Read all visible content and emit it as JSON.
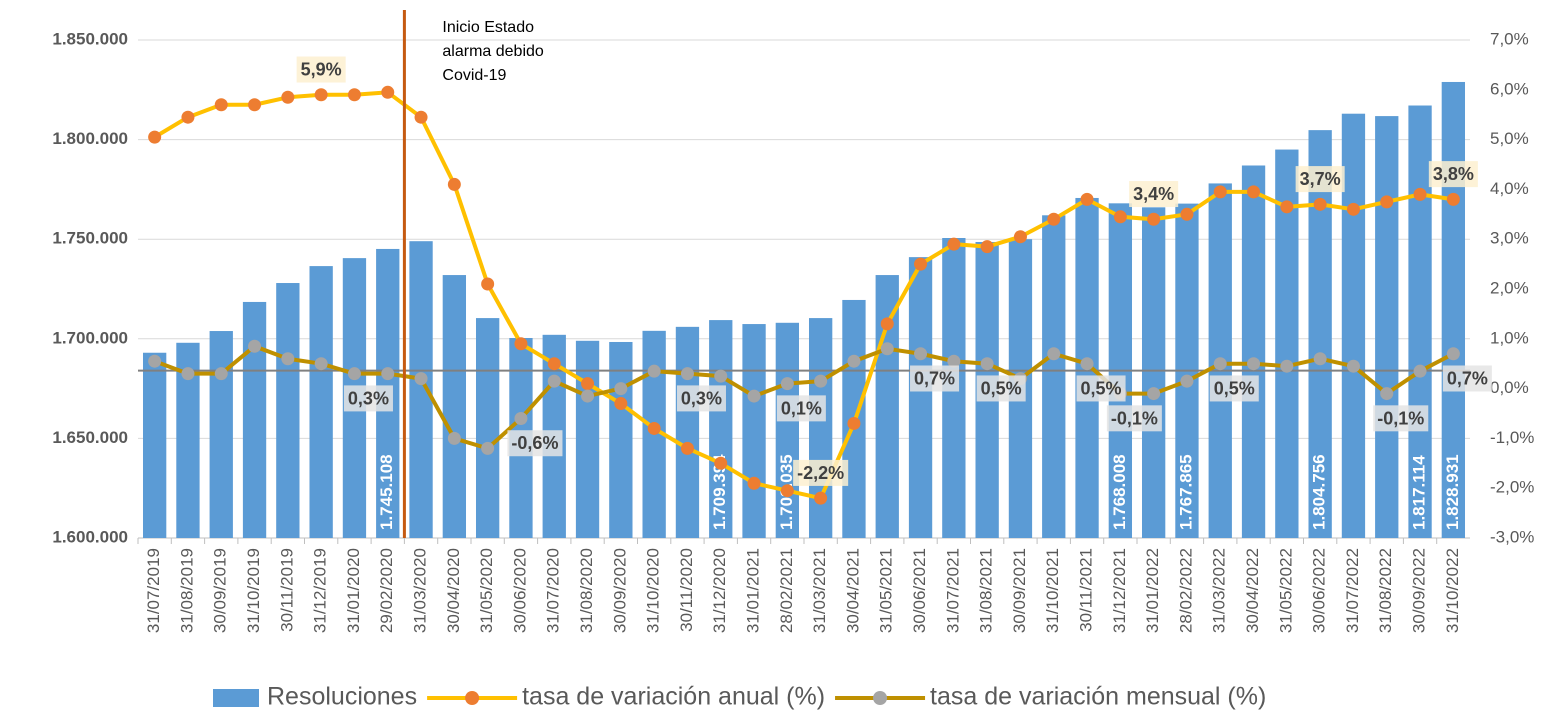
{
  "chart_data": {
    "type": "bar_line",
    "annotation": [
      "Inicio Estado",
      "alarma debido",
      "Covid-19"
    ],
    "categories": [
      "31/07/2019",
      "31/08/2019",
      "30/09/2019",
      "31/10/2019",
      "30/11/2019",
      "31/12/2019",
      "31/01/2020",
      "29/02/2020",
      "31/03/2020",
      "30/04/2020",
      "31/05/2020",
      "30/06/2020",
      "31/07/2020",
      "31/08/2020",
      "30/09/2020",
      "31/10/2020",
      "30/11/2020",
      "31/12/2020",
      "31/01/2021",
      "28/02/2021",
      "31/03/2021",
      "30/04/2021",
      "31/05/2021",
      "30/06/2021",
      "31/07/2021",
      "31/08/2021",
      "30/09/2021",
      "31/10/2021",
      "30/11/2021",
      "31/12/2021",
      "31/01/2022",
      "28/02/2022",
      "31/03/2022",
      "30/04/2022",
      "31/05/2022",
      "30/06/2022",
      "31/07/2022",
      "31/08/2022",
      "30/09/2022",
      "31/10/2022"
    ],
    "series": [
      {
        "name": "Resoluciones",
        "kind": "bar",
        "color": "#5b9bd5",
        "values": [
          1693000,
          1698000,
          1703900,
          1718500,
          1728000,
          1736500,
          1740500,
          1745108,
          1749000,
          1732000,
          1710400,
          1700400,
          1702000,
          1699000,
          1698400,
          1704000,
          1706000,
          1709394,
          1707400,
          1708035,
          1710400,
          1719500,
          1732000,
          1741000,
          1750600,
          1748600,
          1750000,
          1762000,
          1770700,
          1768008,
          1766000,
          1767865,
          1778000,
          1787000,
          1795000,
          1804756,
          1813000,
          1811800,
          1817114,
          1828931
        ],
        "value_labels": [
          null,
          null,
          null,
          null,
          null,
          null,
          null,
          "1.745.108",
          null,
          null,
          null,
          null,
          null,
          null,
          null,
          null,
          null,
          "1.709.394",
          null,
          "1.708.035",
          null,
          null,
          null,
          null,
          null,
          null,
          null,
          null,
          null,
          "1.768.008",
          null,
          "1.767.865",
          null,
          null,
          null,
          "1.804.756",
          null,
          null,
          "1.817.114",
          "1.828.931"
        ]
      },
      {
        "name": "tasa de variación anual (%)",
        "kind": "line",
        "axis": "y2",
        "color": "#ffc000",
        "marker_color": "#ed7d31",
        "label_fill": "#fdf0d0",
        "values": [
          5.05,
          5.45,
          5.7,
          5.7,
          5.85,
          5.9,
          5.9,
          5.95,
          5.45,
          4.1,
          2.1,
          0.9,
          0.5,
          0.1,
          -0.3,
          -0.8,
          -1.2,
          -1.5,
          -1.9,
          -2.05,
          -2.2,
          -0.7,
          1.3,
          2.5,
          2.9,
          2.85,
          3.05,
          3.4,
          3.8,
          3.45,
          3.4,
          3.5,
          3.95,
          3.95,
          3.65,
          3.7,
          3.6,
          3.75,
          3.9,
          3.8
        ],
        "value_labels": [
          null,
          null,
          null,
          null,
          null,
          "5,9%",
          null,
          null,
          null,
          null,
          null,
          null,
          null,
          null,
          null,
          null,
          null,
          null,
          null,
          null,
          "-2,2%",
          null,
          null,
          null,
          null,
          null,
          null,
          null,
          null,
          null,
          "3,4%",
          null,
          null,
          null,
          null,
          "3,7%",
          null,
          null,
          null,
          "3,8%"
        ]
      },
      {
        "name": "tasa de variación mensual (%)",
        "kind": "line",
        "axis": "y2",
        "color": "#bf9000",
        "marker_color": "#a5a5a5",
        "label_fill": "#e4e4e4",
        "values": [
          0.55,
          0.3,
          0.3,
          0.85,
          0.6,
          0.5,
          0.3,
          0.3,
          0.2,
          -1.0,
          -1.2,
          -0.6,
          0.15,
          -0.15,
          0.0,
          0.35,
          0.3,
          0.25,
          -0.15,
          0.1,
          0.15,
          0.55,
          0.8,
          0.7,
          0.55,
          0.5,
          0.2,
          0.7,
          0.5,
          -0.1,
          -0.1,
          0.15,
          0.5,
          0.5,
          0.45,
          0.6,
          0.45,
          -0.1,
          0.35,
          0.7
        ],
        "value_labels": [
          null,
          null,
          null,
          null,
          null,
          null,
          "0,3%",
          null,
          null,
          null,
          null,
          "-0,6%",
          null,
          null,
          null,
          null,
          "0,3%",
          null,
          null,
          "0,1%",
          null,
          null,
          null,
          "0,7%",
          null,
          "0,5%",
          null,
          null,
          "0,5%",
          "-0,1%",
          null,
          null,
          "0,5%",
          null,
          null,
          null,
          null,
          "-0,1%",
          null,
          "0,7%"
        ]
      }
    ],
    "ref_line": 1684000,
    "ylim": [
      1600000,
      1850000
    ],
    "yticks": [
      {
        "value": 1600000,
        "label": "1.600.000"
      },
      {
        "value": 1650000,
        "label": "1.650.000"
      },
      {
        "value": 1700000,
        "label": "1.700.000"
      },
      {
        "value": 1750000,
        "label": "1.750.000"
      },
      {
        "value": 1800000,
        "label": "1.800.000"
      },
      {
        "value": 1850000,
        "label": "1.850.000"
      }
    ],
    "y2lim": [
      -3,
      7
    ],
    "y2ticks": [
      {
        "value": -3,
        "label": "-3,0%"
      },
      {
        "value": -2,
        "label": "-2,0%"
      },
      {
        "value": -1,
        "label": "-1,0%"
      },
      {
        "value": 0,
        "label": "0,0%"
      },
      {
        "value": 1,
        "label": "1,0%"
      },
      {
        "value": 2,
        "label": "2,0%"
      },
      {
        "value": 3,
        "label": "3,0%"
      },
      {
        "value": 4,
        "label": "4,0%"
      },
      {
        "value": 5,
        "label": "5,0%"
      },
      {
        "value": 6,
        "label": "6,0%"
      },
      {
        "value": 7,
        "label": "7,0%"
      }
    ],
    "grid": true,
    "legend": "bottom"
  }
}
